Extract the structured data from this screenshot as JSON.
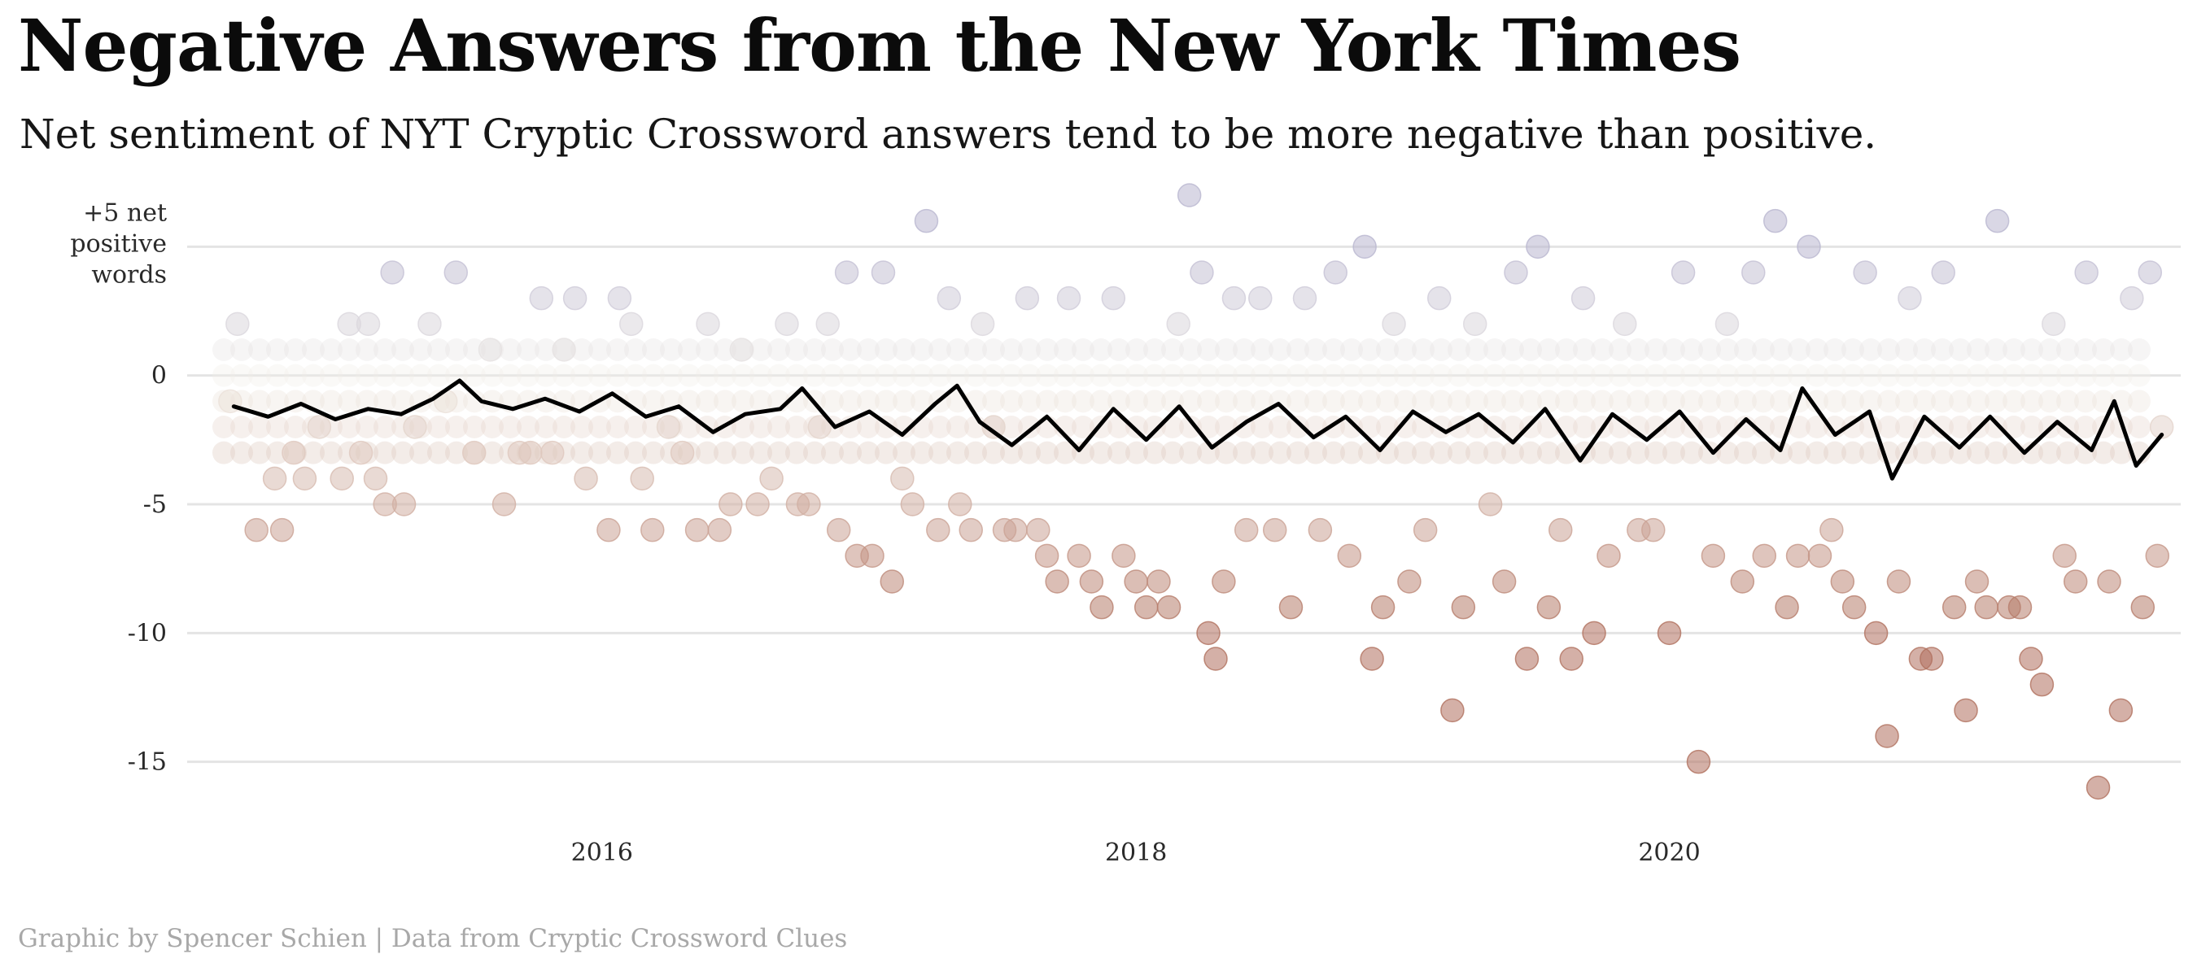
{
  "title": "Negative Answers from the New York Times",
  "subtitle": "Net sentiment of NYT Cryptic Crossword answers tend to be more negative than positive.",
  "caption": "Graphic by Spencer Schien | Data from Cryptic Crossword Clues",
  "colors": {
    "positive": "#b9b6cf",
    "neutral": "#f1ede7",
    "negative": "#b0705e",
    "line": "#000000",
    "grid": "#e4e4e4"
  },
  "chart_data": {
    "type": "scatter",
    "x_axis": {
      "type": "date",
      "range": [
        "2014-06-01",
        "2021-12-01"
      ],
      "tick_labels": [
        "2016",
        "2018",
        "2020"
      ]
    },
    "y_axis": {
      "range": [
        -17,
        7
      ],
      "ticks": [
        5,
        0,
        -5,
        -10,
        -15
      ],
      "tick_labels": [
        "+5 net positive words",
        "0",
        "-5",
        "-10",
        "-15"
      ]
    },
    "grid": true,
    "series": [
      {
        "type": "scatter",
        "note_color": "diverging by net sentiment: lavender for positive, cream for zero, brown for negative",
        "points": [
          {
            "x": "2014-08-10",
            "y": -1
          },
          {
            "x": "2014-08-20",
            "y": 2
          },
          {
            "x": "2014-09-15",
            "y": -6
          },
          {
            "x": "2014-10-10",
            "y": -4
          },
          {
            "x": "2014-10-20",
            "y": -6
          },
          {
            "x": "2014-11-05",
            "y": -3
          },
          {
            "x": "2014-11-20",
            "y": -4
          },
          {
            "x": "2014-12-10",
            "y": -2
          },
          {
            "x": "2015-01-10",
            "y": -4
          },
          {
            "x": "2015-01-20",
            "y": 2
          },
          {
            "x": "2015-02-05",
            "y": -3
          },
          {
            "x": "2015-02-15",
            "y": 2
          },
          {
            "x": "2015-02-25",
            "y": -4
          },
          {
            "x": "2015-03-10",
            "y": -5
          },
          {
            "x": "2015-03-20",
            "y": 4
          },
          {
            "x": "2015-04-05",
            "y": -5
          },
          {
            "x": "2015-04-20",
            "y": -2
          },
          {
            "x": "2015-05-10",
            "y": 2
          },
          {
            "x": "2015-06-01",
            "y": -1
          },
          {
            "x": "2015-06-15",
            "y": 4
          },
          {
            "x": "2015-07-10",
            "y": -3
          },
          {
            "x": "2015-08-01",
            "y": 1
          },
          {
            "x": "2015-08-20",
            "y": -5
          },
          {
            "x": "2015-09-10",
            "y": -3
          },
          {
            "x": "2015-09-25",
            "y": -3
          },
          {
            "x": "2015-10-10",
            "y": 3
          },
          {
            "x": "2015-10-25",
            "y": -3
          },
          {
            "x": "2015-11-10",
            "y": 1
          },
          {
            "x": "2015-11-25",
            "y": 3
          },
          {
            "x": "2015-12-10",
            "y": -4
          },
          {
            "x": "2016-01-10",
            "y": -6
          },
          {
            "x": "2016-01-25",
            "y": 3
          },
          {
            "x": "2016-02-10",
            "y": 2
          },
          {
            "x": "2016-02-25",
            "y": -4
          },
          {
            "x": "2016-03-10",
            "y": -6
          },
          {
            "x": "2016-04-01",
            "y": -2
          },
          {
            "x": "2016-04-20",
            "y": -3
          },
          {
            "x": "2016-05-10",
            "y": -6
          },
          {
            "x": "2016-05-25",
            "y": 2
          },
          {
            "x": "2016-06-10",
            "y": -6
          },
          {
            "x": "2016-06-25",
            "y": -5
          },
          {
            "x": "2016-07-10",
            "y": 1
          },
          {
            "x": "2016-08-01",
            "y": -5
          },
          {
            "x": "2016-08-20",
            "y": -4
          },
          {
            "x": "2016-09-10",
            "y": 2
          },
          {
            "x": "2016-09-25",
            "y": -5
          },
          {
            "x": "2016-10-10",
            "y": -5
          },
          {
            "x": "2016-10-25",
            "y": -2
          },
          {
            "x": "2016-11-05",
            "y": 2
          },
          {
            "x": "2016-11-20",
            "y": -6
          },
          {
            "x": "2016-12-01",
            "y": 4
          },
          {
            "x": "2016-12-15",
            "y": -7
          },
          {
            "x": "2017-01-05",
            "y": -7
          },
          {
            "x": "2017-01-20",
            "y": 4
          },
          {
            "x": "2017-02-01",
            "y": -8
          },
          {
            "x": "2017-02-15",
            "y": -4
          },
          {
            "x": "2017-03-01",
            "y": -5
          },
          {
            "x": "2017-03-20",
            "y": 6
          },
          {
            "x": "2017-04-05",
            "y": -6
          },
          {
            "x": "2017-04-20",
            "y": 3
          },
          {
            "x": "2017-05-05",
            "y": -5
          },
          {
            "x": "2017-05-20",
            "y": -6
          },
          {
            "x": "2017-06-05",
            "y": 2
          },
          {
            "x": "2017-06-20",
            "y": -2
          },
          {
            "x": "2017-07-05",
            "y": -6
          },
          {
            "x": "2017-07-20",
            "y": -6
          },
          {
            "x": "2017-08-05",
            "y": 3
          },
          {
            "x": "2017-08-20",
            "y": -6
          },
          {
            "x": "2017-09-01",
            "y": -7
          },
          {
            "x": "2017-09-15",
            "y": -8
          },
          {
            "x": "2017-10-01",
            "y": 3
          },
          {
            "x": "2017-10-15",
            "y": -7
          },
          {
            "x": "2017-11-01",
            "y": -8
          },
          {
            "x": "2017-11-15",
            "y": -9
          },
          {
            "x": "2017-12-01",
            "y": 3
          },
          {
            "x": "2017-12-15",
            "y": -7
          },
          {
            "x": "2018-01-01",
            "y": -8
          },
          {
            "x": "2018-01-15",
            "y": -9
          },
          {
            "x": "2018-02-01",
            "y": -8
          },
          {
            "x": "2018-02-15",
            "y": -9
          },
          {
            "x": "2018-02-28",
            "y": 2
          },
          {
            "x": "2018-03-15",
            "y": 7
          },
          {
            "x": "2018-04-01",
            "y": 4
          },
          {
            "x": "2018-04-10",
            "y": -10
          },
          {
            "x": "2018-04-20",
            "y": -11
          },
          {
            "x": "2018-05-01",
            "y": -8
          },
          {
            "x": "2018-05-15",
            "y": 3
          },
          {
            "x": "2018-06-01",
            "y": -6
          },
          {
            "x": "2018-06-20",
            "y": 3
          },
          {
            "x": "2018-07-10",
            "y": -6
          },
          {
            "x": "2018-08-01",
            "y": -9
          },
          {
            "x": "2018-08-20",
            "y": 3
          },
          {
            "x": "2018-09-10",
            "y": -6
          },
          {
            "x": "2018-10-01",
            "y": 4
          },
          {
            "x": "2018-10-20",
            "y": -7
          },
          {
            "x": "2018-11-10",
            "y": 5
          },
          {
            "x": "2018-11-20",
            "y": -11
          },
          {
            "x": "2018-12-05",
            "y": -9
          },
          {
            "x": "2018-12-20",
            "y": 2
          },
          {
            "x": "2019-01-10",
            "y": -8
          },
          {
            "x": "2019-02-01",
            "y": -6
          },
          {
            "x": "2019-02-20",
            "y": 3
          },
          {
            "x": "2019-03-10",
            "y": -13
          },
          {
            "x": "2019-03-25",
            "y": -9
          },
          {
            "x": "2019-04-10",
            "y": 2
          },
          {
            "x": "2019-05-01",
            "y": -5
          },
          {
            "x": "2019-05-20",
            "y": -8
          },
          {
            "x": "2019-06-05",
            "y": 4
          },
          {
            "x": "2019-06-20",
            "y": -11
          },
          {
            "x": "2019-07-05",
            "y": 5
          },
          {
            "x": "2019-07-20",
            "y": -9
          },
          {
            "x": "2019-08-05",
            "y": -6
          },
          {
            "x": "2019-08-20",
            "y": -11
          },
          {
            "x": "2019-09-05",
            "y": 3
          },
          {
            "x": "2019-09-20",
            "y": -10
          },
          {
            "x": "2019-10-10",
            "y": -7
          },
          {
            "x": "2019-11-01",
            "y": 2
          },
          {
            "x": "2019-11-20",
            "y": -6
          },
          {
            "x": "2019-12-10",
            "y": -6
          },
          {
            "x": "2020-01-01",
            "y": -10
          },
          {
            "x": "2020-01-20",
            "y": 4
          },
          {
            "x": "2020-02-10",
            "y": -15
          },
          {
            "x": "2020-03-01",
            "y": -7
          },
          {
            "x": "2020-03-20",
            "y": 2
          },
          {
            "x": "2020-04-10",
            "y": -8
          },
          {
            "x": "2020-04-25",
            "y": 4
          },
          {
            "x": "2020-05-10",
            "y": -7
          },
          {
            "x": "2020-05-25",
            "y": 6
          },
          {
            "x": "2020-06-10",
            "y": -9
          },
          {
            "x": "2020-06-25",
            "y": -7
          },
          {
            "x": "2020-07-10",
            "y": 5
          },
          {
            "x": "2020-07-25",
            "y": -7
          },
          {
            "x": "2020-08-10",
            "y": -6
          },
          {
            "x": "2020-08-25",
            "y": -8
          },
          {
            "x": "2020-09-10",
            "y": -9
          },
          {
            "x": "2020-09-25",
            "y": 4
          },
          {
            "x": "2020-10-10",
            "y": -10
          },
          {
            "x": "2020-10-25",
            "y": -14
          },
          {
            "x": "2020-11-10",
            "y": -8
          },
          {
            "x": "2020-11-25",
            "y": 3
          },
          {
            "x": "2020-12-10",
            "y": -11
          },
          {
            "x": "2020-12-25",
            "y": -11
          },
          {
            "x": "2021-01-10",
            "y": 4
          },
          {
            "x": "2021-01-25",
            "y": -9
          },
          {
            "x": "2021-02-10",
            "y": -13
          },
          {
            "x": "2021-02-25",
            "y": -8
          },
          {
            "x": "2021-03-10",
            "y": -9
          },
          {
            "x": "2021-03-25",
            "y": 6
          },
          {
            "x": "2021-04-10",
            "y": -9
          },
          {
            "x": "2021-04-25",
            "y": -9
          },
          {
            "x": "2021-05-10",
            "y": -11
          },
          {
            "x": "2021-05-25",
            "y": -12
          },
          {
            "x": "2021-06-10",
            "y": 2
          },
          {
            "x": "2021-06-25",
            "y": -7
          },
          {
            "x": "2021-07-10",
            "y": -8
          },
          {
            "x": "2021-07-25",
            "y": 4
          },
          {
            "x": "2021-08-10",
            "y": -16
          },
          {
            "x": "2021-08-25",
            "y": -8
          },
          {
            "x": "2021-09-10",
            "y": -13
          },
          {
            "x": "2021-09-25",
            "y": 3
          },
          {
            "x": "2021-10-10",
            "y": -9
          },
          {
            "x": "2021-10-20",
            "y": 4
          },
          {
            "x": "2021-10-30",
            "y": -7
          },
          {
            "x": "2021-11-05",
            "y": -2
          }
        ]
      },
      {
        "type": "line",
        "points": [
          {
            "x": "2014-08-15",
            "y": -1.2
          },
          {
            "x": "2014-10-01",
            "y": -1.6
          },
          {
            "x": "2014-11-15",
            "y": -1.1
          },
          {
            "x": "2015-01-01",
            "y": -1.7
          },
          {
            "x": "2015-02-15",
            "y": -1.3
          },
          {
            "x": "2015-04-01",
            "y": -1.5
          },
          {
            "x": "2015-05-15",
            "y": -0.9
          },
          {
            "x": "2015-06-20",
            "y": -0.2
          },
          {
            "x": "2015-07-20",
            "y": -1.0
          },
          {
            "x": "2015-09-01",
            "y": -1.3
          },
          {
            "x": "2015-10-15",
            "y": -0.9
          },
          {
            "x": "2015-12-01",
            "y": -1.4
          },
          {
            "x": "2016-01-15",
            "y": -0.7
          },
          {
            "x": "2016-03-01",
            "y": -1.6
          },
          {
            "x": "2016-04-15",
            "y": -1.2
          },
          {
            "x": "2016-06-01",
            "y": -2.2
          },
          {
            "x": "2016-07-15",
            "y": -1.5
          },
          {
            "x": "2016-09-01",
            "y": -1.3
          },
          {
            "x": "2016-10-01",
            "y": -0.5
          },
          {
            "x": "2016-11-15",
            "y": -2.0
          },
          {
            "x": "2017-01-01",
            "y": -1.4
          },
          {
            "x": "2017-02-15",
            "y": -2.3
          },
          {
            "x": "2017-04-01",
            "y": -1.1
          },
          {
            "x": "2017-05-01",
            "y": -0.4
          },
          {
            "x": "2017-06-01",
            "y": -1.8
          },
          {
            "x": "2017-07-15",
            "y": -2.7
          },
          {
            "x": "2017-09-01",
            "y": -1.6
          },
          {
            "x": "2017-10-15",
            "y": -2.9
          },
          {
            "x": "2017-12-01",
            "y": -1.3
          },
          {
            "x": "2018-01-15",
            "y": -2.5
          },
          {
            "x": "2018-03-01",
            "y": -1.2
          },
          {
            "x": "2018-04-15",
            "y": -2.8
          },
          {
            "x": "2018-06-01",
            "y": -1.8
          },
          {
            "x": "2018-07-15",
            "y": -1.1
          },
          {
            "x": "2018-09-01",
            "y": -2.4
          },
          {
            "x": "2018-10-15",
            "y": -1.6
          },
          {
            "x": "2018-12-01",
            "y": -2.9
          },
          {
            "x": "2019-01-15",
            "y": -1.4
          },
          {
            "x": "2019-03-01",
            "y": -2.2
          },
          {
            "x": "2019-04-15",
            "y": -1.5
          },
          {
            "x": "2019-06-01",
            "y": -2.6
          },
          {
            "x": "2019-07-15",
            "y": -1.3
          },
          {
            "x": "2019-09-01",
            "y": -3.3
          },
          {
            "x": "2019-10-15",
            "y": -1.5
          },
          {
            "x": "2019-12-01",
            "y": -2.5
          },
          {
            "x": "2020-01-15",
            "y": -1.4
          },
          {
            "x": "2020-03-01",
            "y": -3.0
          },
          {
            "x": "2020-04-15",
            "y": -1.7
          },
          {
            "x": "2020-06-01",
            "y": -2.9
          },
          {
            "x": "2020-07-01",
            "y": -0.5
          },
          {
            "x": "2020-08-15",
            "y": -2.3
          },
          {
            "x": "2020-10-01",
            "y": -1.4
          },
          {
            "x": "2020-11-01",
            "y": -4.0
          },
          {
            "x": "2020-12-15",
            "y": -1.6
          },
          {
            "x": "2021-02-01",
            "y": -2.8
          },
          {
            "x": "2021-03-15",
            "y": -1.6
          },
          {
            "x": "2021-05-01",
            "y": -3.0
          },
          {
            "x": "2021-06-15",
            "y": -1.8
          },
          {
            "x": "2021-08-01",
            "y": -2.9
          },
          {
            "x": "2021-09-01",
            "y": -1.0
          },
          {
            "x": "2021-10-01",
            "y": -3.5
          },
          {
            "x": "2021-11-05",
            "y": -2.3
          }
        ]
      }
    ]
  }
}
